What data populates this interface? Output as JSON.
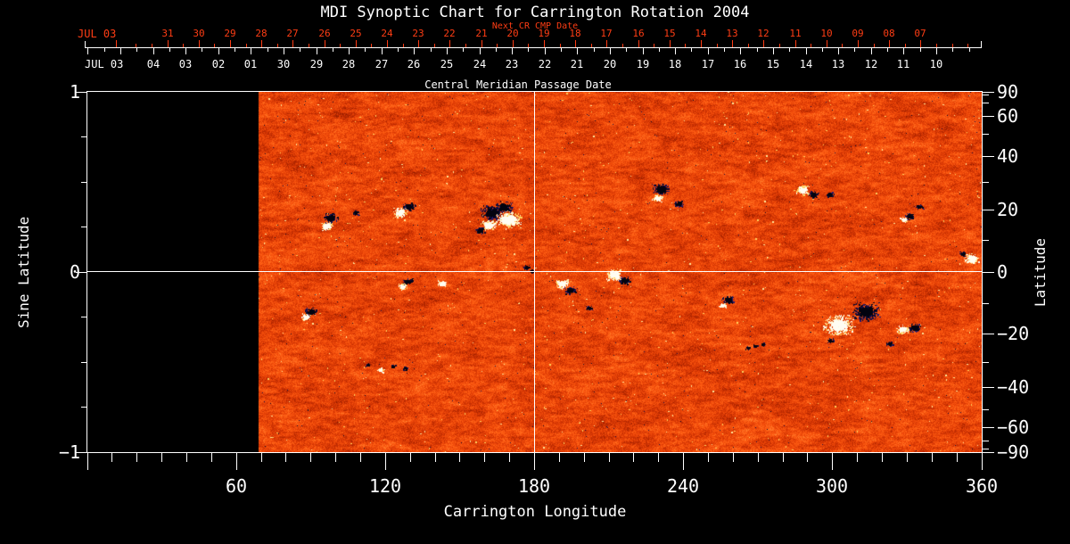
{
  "title": "MDI Synoptic Chart for Carrington Rotation 2004",
  "colors": {
    "background": "#000000",
    "foreground": "#ffffff",
    "accent_red": "#ff3d14",
    "no_data_black": "#000000",
    "quiet_sun_orange": "#f04a0a",
    "positive_polarity_white": "#fffdf2",
    "negative_polarity_dark": "#0b0a32"
  },
  "next_cr_axis": {
    "label": "Next CR CMP Date",
    "month_label": "JUL 03",
    "days": [
      "31",
      "30",
      "29",
      "28",
      "27",
      "26",
      "25",
      "24",
      "23",
      "22",
      "21",
      "20",
      "19",
      "18",
      "17",
      "16",
      "15",
      "14",
      "13",
      "12",
      "11",
      "10",
      "09",
      "08",
      "07"
    ]
  },
  "cmp_axis": {
    "label": "Central Meridian Passage Date",
    "month_label": "JUL 03",
    "days": [
      "04",
      "03",
      "02",
      "01",
      "30",
      "29",
      "28",
      "27",
      "26",
      "25",
      "24",
      "23",
      "22",
      "21",
      "20",
      "19",
      "18",
      "17",
      "16",
      "15",
      "14",
      "13",
      "12",
      "11",
      "10"
    ]
  },
  "x_axis": {
    "label": "Carrington Longitude",
    "major_ticks": [
      "60",
      "120",
      "180",
      "240",
      "300",
      "360"
    ]
  },
  "y_axis_left": {
    "label": "Sine Latitude",
    "major_ticks": [
      "1",
      "0",
      "−1"
    ]
  },
  "y_axis_right": {
    "label": "Latitude",
    "major_ticks": [
      "90",
      "60",
      "40",
      "20",
      "0",
      "−20",
      "−40",
      "−60",
      "−90"
    ]
  },
  "chart_data": {
    "type": "heatmap",
    "title": "MDI Synoptic Chart for Carrington Rotation 2004",
    "carrington_rotation": 2004,
    "xlabel": "Carrington Longitude",
    "xlim": [
      0,
      360
    ],
    "x_major_tick_step_deg": 60,
    "x_minor_tick_step_deg": 10,
    "ylabel_left": "Sine Latitude",
    "ylim_sine_latitude": [
      -1,
      1
    ],
    "ylabel_right": "Latitude",
    "latitude_major_ticks_deg": [
      90,
      60,
      40,
      20,
      0,
      -20,
      -40,
      -60,
      -90
    ],
    "latitude_minor_ticks_deg": [
      80,
      70,
      50,
      30,
      10,
      -10,
      -30,
      -50,
      -70,
      -80
    ],
    "reference_lines": {
      "longitude_deg": 180,
      "latitude_deg": 0
    },
    "data_coverage_longitude_deg": [
      69,
      360
    ],
    "no_data_region_longitude_deg": [
      0,
      69
    ],
    "colormap_description": "orange-red solar magnetogram noise; bright white/yellow patches = positive magnetic polarity, dark navy/black patches = negative polarity; left strip black (rotation not yet complete)",
    "next_cr_cmp_dates": {
      "first_label": "JUL 03",
      "day_labels": [
        "31",
        "30",
        "29",
        "28",
        "27",
        "26",
        "25",
        "24",
        "23",
        "22",
        "21",
        "20",
        "19",
        "18",
        "17",
        "16",
        "15",
        "14",
        "13",
        "12",
        "11",
        "10",
        "09",
        "08",
        "07"
      ]
    },
    "cmp_dates": {
      "first_label": "JUL 03",
      "day_labels": [
        "04",
        "03",
        "02",
        "01",
        "30",
        "29",
        "28",
        "27",
        "26",
        "25",
        "24",
        "23",
        "22",
        "21",
        "20",
        "19",
        "18",
        "17",
        "16",
        "15",
        "14",
        "13",
        "12",
        "11",
        "10"
      ]
    },
    "spot_format": "[polarity, delta_longitude_deg, delta_sine_latitude, radius_px]",
    "active_regions": [
      {
        "longitude_deg": 98,
        "sine_latitude": 0.3,
        "spots": [
          [
            "-",
            0,
            0,
            6
          ],
          [
            "+",
            -1.5,
            -0.045,
            5
          ]
        ]
      },
      {
        "longitude_deg": 108,
        "sine_latitude": 0.33,
        "spots": [
          [
            "-",
            0,
            0,
            3
          ]
        ]
      },
      {
        "longitude_deg": 126,
        "sine_latitude": 0.33,
        "spots": [
          [
            "+",
            0,
            0,
            6
          ],
          [
            "-",
            3.6,
            0.035,
            5
          ]
        ]
      },
      {
        "longitude_deg": 129,
        "sine_latitude": -0.055,
        "spots": [
          [
            "-",
            0,
            0,
            4
          ],
          [
            "+",
            -2.2,
            -0.025,
            4
          ]
        ]
      },
      {
        "longitude_deg": 163,
        "sine_latitude": 0.33,
        "spots": [
          [
            "-",
            0,
            0,
            9
          ],
          [
            "-",
            4.7,
            0.03,
            7
          ],
          [
            "+",
            6.5,
            -0.04,
            10
          ],
          [
            "+",
            -1.4,
            -0.07,
            6
          ],
          [
            "-",
            -5,
            -0.1,
            4
          ]
        ]
      },
      {
        "longitude_deg": 90,
        "sine_latitude": -0.22,
        "spots": [
          [
            "-",
            0,
            0,
            5
          ],
          [
            "+",
            -2.2,
            -0.03,
            4
          ]
        ]
      },
      {
        "longitude_deg": 143,
        "sine_latitude": -0.065,
        "spots": [
          [
            "+",
            0,
            0,
            4
          ]
        ]
      },
      {
        "longitude_deg": 191,
        "sine_latitude": -0.065,
        "spots": [
          [
            "+",
            0,
            0,
            6
          ],
          [
            "-",
            3.6,
            -0.035,
            5
          ]
        ]
      },
      {
        "longitude_deg": 212,
        "sine_latitude": -0.015,
        "spots": [
          [
            "+",
            0,
            0,
            7
          ],
          [
            "-",
            4.3,
            -0.035,
            5
          ]
        ]
      },
      {
        "longitude_deg": 231,
        "sine_latitude": 0.46,
        "spots": [
          [
            "-",
            0,
            0,
            7
          ],
          [
            "+",
            -1.4,
            -0.05,
            4
          ]
        ]
      },
      {
        "longitude_deg": 238,
        "sine_latitude": 0.38,
        "spots": [
          [
            "-",
            0,
            0,
            4
          ]
        ]
      },
      {
        "longitude_deg": 258,
        "sine_latitude": -0.155,
        "spots": [
          [
            "-",
            0,
            0,
            5
          ],
          [
            "+",
            -2.2,
            -0.03,
            3
          ]
        ]
      },
      {
        "longitude_deg": 288,
        "sine_latitude": 0.455,
        "spots": [
          [
            "+",
            0,
            0,
            6
          ],
          [
            "-",
            4.3,
            -0.025,
            4
          ]
        ]
      },
      {
        "longitude_deg": 299,
        "sine_latitude": 0.43,
        "spots": [
          [
            "-",
            0,
            0,
            3
          ]
        ]
      },
      {
        "longitude_deg": 309,
        "sine_latitude": -0.26,
        "spots": [
          [
            "+",
            -6.5,
            -0.035,
            12
          ],
          [
            "-",
            4.3,
            0.04,
            11
          ],
          [
            "+",
            19.4,
            -0.06,
            5
          ],
          [
            "-",
            24,
            -0.05,
            5
          ],
          [
            "-",
            14,
            -0.14,
            3
          ],
          [
            "-",
            -10,
            -0.12,
            3
          ]
        ]
      },
      {
        "longitude_deg": 331,
        "sine_latitude": 0.31,
        "spots": [
          [
            "-",
            0,
            0,
            4
          ],
          [
            "+",
            -2.2,
            -0.02,
            3
          ],
          [
            "-",
            4,
            0.05,
            3
          ]
        ]
      },
      {
        "longitude_deg": 356,
        "sine_latitude": 0.075,
        "spots": [
          [
            "+",
            0,
            0,
            6
          ],
          [
            "-",
            -3.6,
            0.025,
            3
          ]
        ]
      },
      {
        "longitude_deg": 269,
        "sine_latitude": -0.41,
        "spots": [
          [
            "-",
            0,
            0,
            2
          ],
          [
            "-",
            3,
            0.01,
            2
          ],
          [
            "-",
            -3,
            -0.01,
            2
          ]
        ]
      },
      {
        "longitude_deg": 118,
        "sine_latitude": -0.545,
        "spots": [
          [
            "+",
            0,
            0,
            3
          ],
          [
            "-",
            5,
            0.02,
            2
          ],
          [
            "-",
            -5,
            0.03,
            2
          ],
          [
            "-",
            10,
            0.01,
            2
          ]
        ]
      },
      {
        "longitude_deg": 177,
        "sine_latitude": 0.025,
        "spots": [
          [
            "-",
            0,
            0,
            3
          ],
          [
            "-",
            2,
            -0.02,
            2
          ]
        ]
      },
      {
        "longitude_deg": 202,
        "sine_latitude": -0.2,
        "spots": [
          [
            "-",
            0,
            0,
            3
          ]
        ]
      }
    ]
  }
}
